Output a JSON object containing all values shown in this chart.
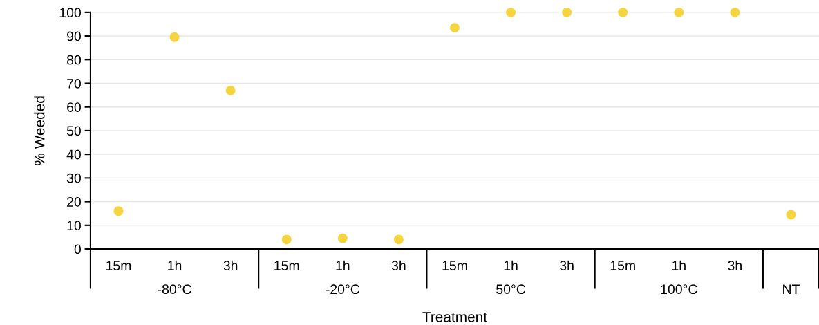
{
  "chart_data": {
    "type": "scatter",
    "xlabel": "Treatment",
    "ylabel": "% Weeded",
    "categories": [
      "15m",
      "1h",
      "3h",
      "15m",
      "1h",
      "3h",
      "15m",
      "1h",
      "3h",
      "15m",
      "1h",
      "3h",
      null
    ],
    "series": [
      {
        "color": "#f5d53f",
        "values": [
          16,
          89.5,
          67,
          4,
          4.5,
          4,
          93.5,
          100,
          100,
          100,
          100,
          100,
          14.5
        ]
      }
    ],
    "annotations": [
      "-80°C",
      "-20°C",
      "50°C",
      "100°C",
      "NT"
    ],
    "ylim": [
      0,
      100
    ],
    "yticks": [
      0,
      10,
      20,
      30,
      40,
      50,
      60,
      70,
      80,
      90,
      100
    ],
    "grid": "y",
    "marker": "circle",
    "legend": false
  }
}
